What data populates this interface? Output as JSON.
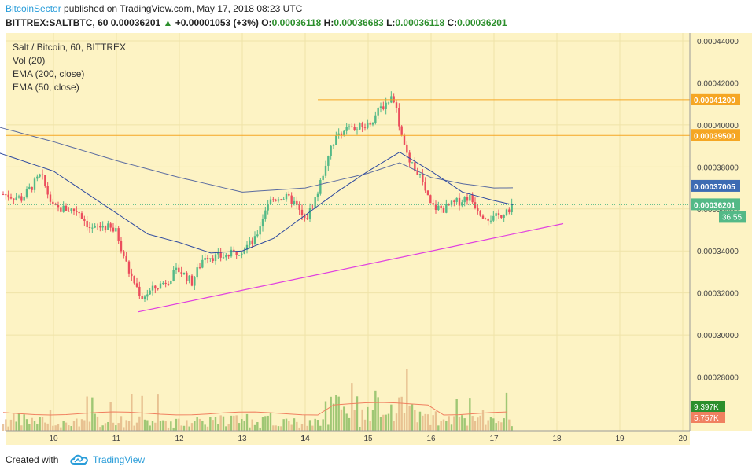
{
  "header": {
    "publisher": "BitcoinSector",
    "published_text": "published on TradingView.com, May 17, 2018 08:23 UTC",
    "symbol_line": "BITTREX:SALTBTC, 60",
    "last": "0.00036201",
    "change": "+0.00001053 (+3%)",
    "o_label": "O:",
    "o": "0.00036118",
    "h_label": "H:",
    "h": "0.00036683",
    "l_label": "L:",
    "l": "0.00036118",
    "c_label": "C:",
    "c": "0.00036201"
  },
  "legend": {
    "title": "Salt / Bitcoin, 60, BITTREX",
    "vol": "Vol (20)",
    "ema200": "EMA (200, close)",
    "ema50": "EMA (50, close)"
  },
  "footer": {
    "created_with": "Created with",
    "brand": "TradingView"
  },
  "colors": {
    "background": "#fdf3c4",
    "up": "#53b987",
    "down": "#eb4d5c",
    "ema200": "#5a6ba0",
    "ema50": "#2e4aa0",
    "resistance": "#f5a623",
    "trendline": "#e040e0",
    "vol_up": "#7fb85a",
    "vol_down": "#e0b080"
  },
  "chart_data": {
    "type": "candlestick",
    "symbol": "BITTREX:SALTBTC",
    "interval": "60",
    "ylim": [
      0.00026,
      0.00044
    ],
    "y_ticks": [
      "0.00044000",
      "0.00042000",
      "0.00040000",
      "0.00038000",
      "0.00036000",
      "0.00034000",
      "0.00032000",
      "0.00030000",
      "0.00028000"
    ],
    "x_ticks": [
      "10",
      "11",
      "12",
      "13",
      "14",
      "15",
      "16",
      "17",
      "18",
      "19",
      "20"
    ],
    "horizontal_levels": [
      {
        "label": "0.00041200",
        "value": 0.000412,
        "color": "#f5a623"
      },
      {
        "label": "0.00039500",
        "value": 0.000395,
        "color": "#f5a623"
      }
    ],
    "price_tags": [
      {
        "label": "0.00037005",
        "value": 0.00037005,
        "color": "#3d6bb3"
      },
      {
        "label": "0.00036201",
        "value": 0.00036201,
        "color": "#53b987"
      }
    ],
    "countdown": "36:55",
    "volume_tags": [
      {
        "label": "9.397K",
        "color": "#2c8f2c"
      },
      {
        "label": "5.757K",
        "color": "#f08060"
      }
    ],
    "trendline": [
      {
        "x": 11.35,
        "y": 0.000311
      },
      {
        "x": 18.1,
        "y": 0.000353
      }
    ],
    "price_path": [
      [
        9.2,
        0.000367
      ],
      [
        9.5,
        0.000365
      ],
      [
        9.8,
        0.000376
      ],
      [
        10.0,
        0.00036
      ],
      [
        10.2,
        0.00036
      ],
      [
        10.4,
        0.000359
      ],
      [
        10.6,
        0.00035
      ],
      [
        10.8,
        0.000352
      ],
      [
        11.0,
        0.000349
      ],
      [
        11.2,
        0.00033
      ],
      [
        11.4,
        0.000318
      ],
      [
        11.6,
        0.000322
      ],
      [
        11.8,
        0.000326
      ],
      [
        12.0,
        0.000331
      ],
      [
        12.2,
        0.000325
      ],
      [
        12.4,
        0.000338
      ],
      [
        12.6,
        0.000337
      ],
      [
        12.8,
        0.000338
      ],
      [
        13.0,
        0.000341
      ],
      [
        13.2,
        0.000345
      ],
      [
        13.4,
        0.000363
      ],
      [
        13.6,
        0.000366
      ],
      [
        13.8,
        0.000364
      ],
      [
        14.0,
        0.000354
      ],
      [
        14.2,
        0.000368
      ],
      [
        14.4,
        0.00039
      ],
      [
        14.6,
        0.000398
      ],
      [
        14.8,
        0.000398
      ],
      [
        15.0,
        0.0004
      ],
      [
        15.2,
        0.000408
      ],
      [
        15.4,
        0.000414
      ],
      [
        15.5,
        0.0004
      ],
      [
        15.6,
        0.000386
      ],
      [
        15.8,
        0.000377
      ],
      [
        16.0,
        0.000361
      ],
      [
        16.2,
        0.00036
      ],
      [
        16.4,
        0.000363
      ],
      [
        16.6,
        0.000366
      ],
      [
        16.8,
        0.000358
      ],
      [
        17.0,
        0.000355
      ],
      [
        17.3,
        0.000362
      ]
    ],
    "ema200": [
      [
        9.0,
        0.0004
      ],
      [
        10.0,
        0.000392
      ],
      [
        11.0,
        0.000383
      ],
      [
        12.0,
        0.000375
      ],
      [
        13.0,
        0.000368
      ],
      [
        14.0,
        0.00037
      ],
      [
        15.0,
        0.000377
      ],
      [
        15.5,
        0.000382
      ],
      [
        16.0,
        0.000375
      ],
      [
        16.5,
        0.000372
      ],
      [
        17.0,
        0.00037
      ],
      [
        17.3,
        0.00037005
      ]
    ],
    "ema50": [
      [
        9.0,
        0.000388
      ],
      [
        10.0,
        0.000378
      ],
      [
        10.5,
        0.000368
      ],
      [
        11.0,
        0.000358
      ],
      [
        11.5,
        0.000348
      ],
      [
        12.0,
        0.000344
      ],
      [
        12.5,
        0.000339
      ],
      [
        13.0,
        0.00034
      ],
      [
        13.5,
        0.000346
      ],
      [
        14.0,
        0.000357
      ],
      [
        14.5,
        0.000368
      ],
      [
        15.0,
        0.000378
      ],
      [
        15.5,
        0.000387
      ],
      [
        16.0,
        0.000378
      ],
      [
        16.5,
        0.000368
      ],
      [
        17.0,
        0.000364
      ],
      [
        17.3,
        0.000362
      ]
    ]
  }
}
